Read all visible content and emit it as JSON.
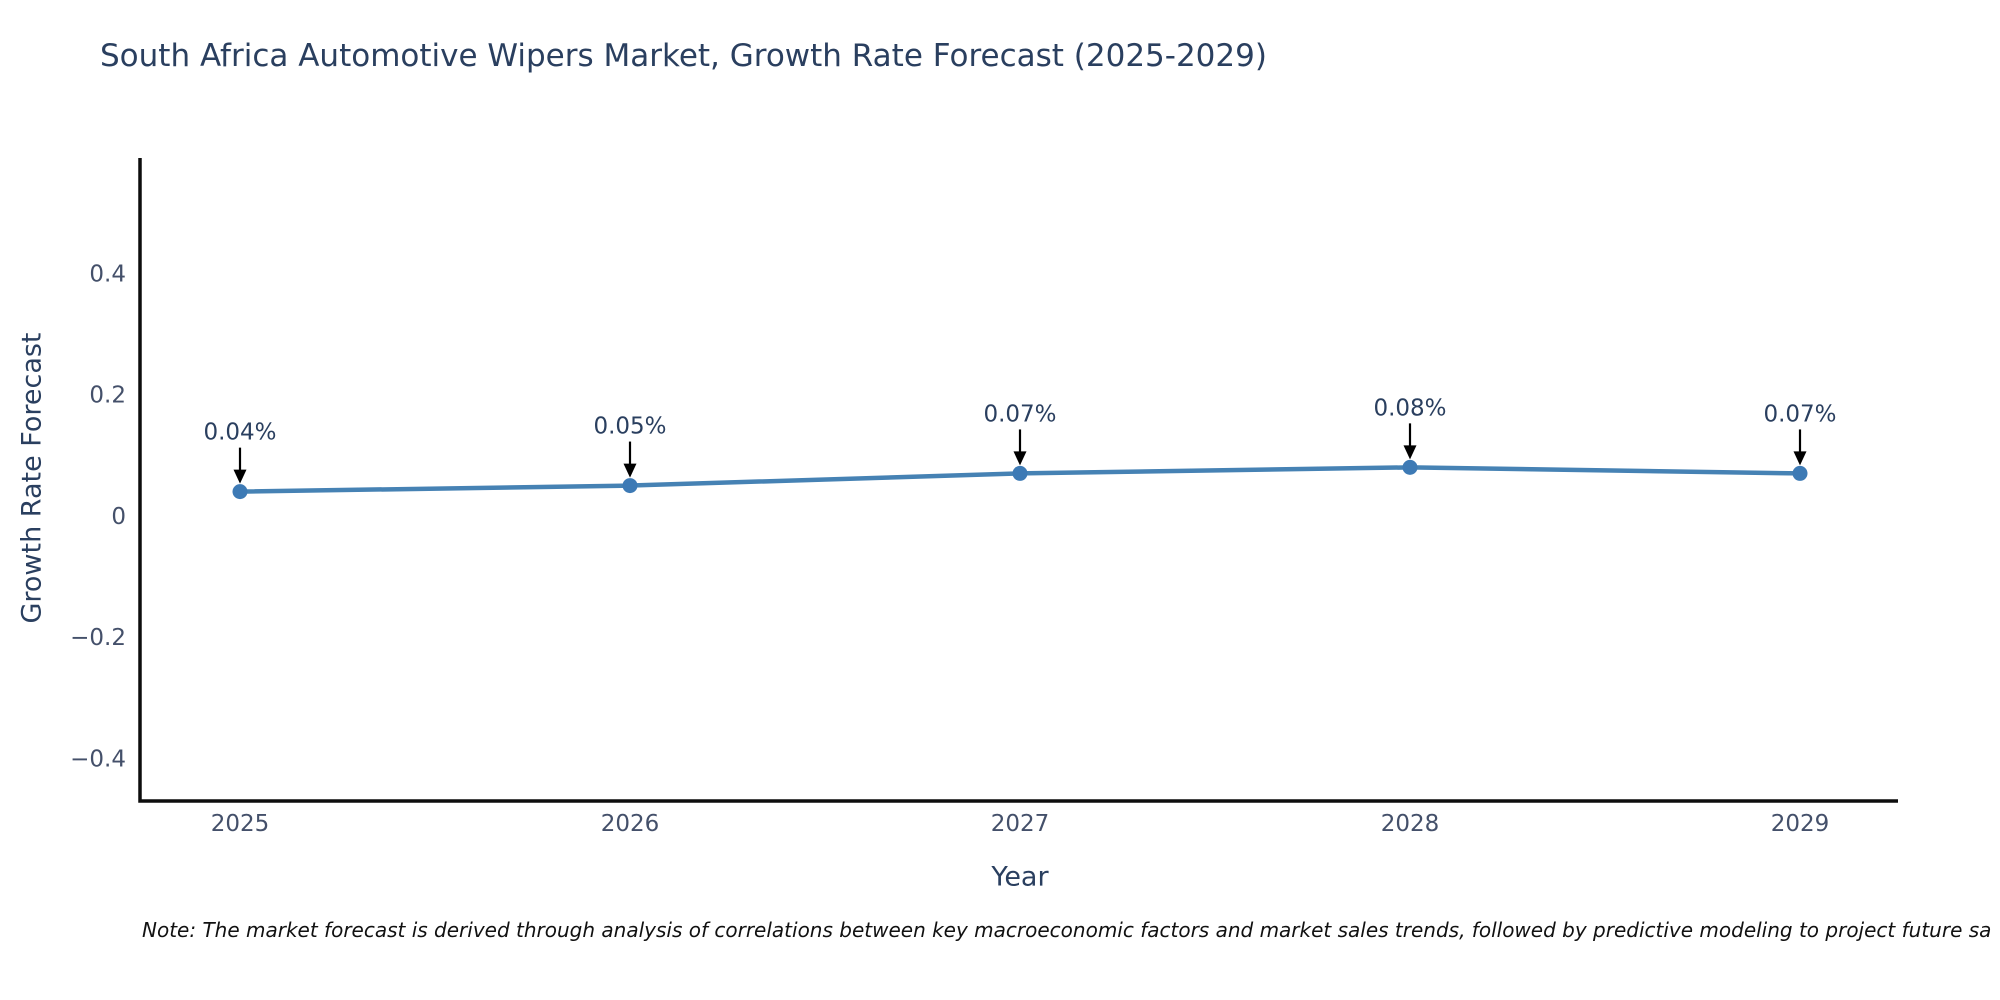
{
  "chart_data": {
    "type": "line",
    "title": "South Africa Automotive Wipers Market, Growth Rate Forecast (2025-2029)",
    "xlabel": "Year",
    "ylabel": "Growth Rate Forecast",
    "categories": [
      "2025",
      "2026",
      "2027",
      "2028",
      "2029"
    ],
    "series": [
      {
        "name": "Growth Rate Forecast",
        "values": [
          0.04,
          0.05,
          0.07,
          0.08,
          0.07
        ]
      }
    ],
    "point_labels": [
      "0.04%",
      "0.05%",
      "0.07%",
      "0.08%",
      "0.07%"
    ],
    "yticks": [
      -0.4,
      -0.2,
      0,
      0.2,
      0.4
    ],
    "ytick_labels": [
      "−0.4",
      "−0.2",
      "0",
      "0.2",
      "0.4"
    ],
    "ylim": [
      -0.47,
      0.59
    ],
    "grid": false,
    "legend": "none",
    "annotations_arrow": "down-to-point"
  },
  "note": {
    "text": "Note: The market forecast is derived through analysis of correlations between key macroeconomic factors and market sales trends, followed by predictive modeling to project future sa"
  },
  "colors": {
    "title": "#2a3f5f",
    "tick_label": "#44506a",
    "annotation_text": "#2a3f5f",
    "axis_line": "#0d0d0d",
    "series_line": "#4682b4",
    "marker_fill": "#3d7ab5",
    "arrow": "#000000",
    "background": "#ffffff"
  }
}
